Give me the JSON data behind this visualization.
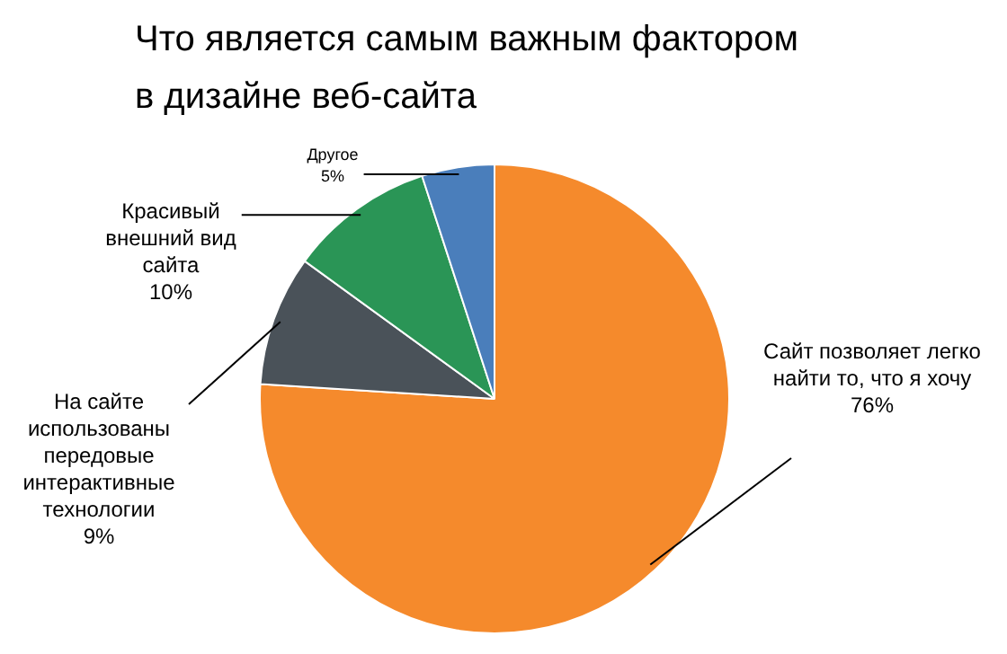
{
  "chart_data": {
    "type": "pie",
    "title": "Что является самым важным фактором в дизайне веб-сайта",
    "categories": [
      "Сайт позволяет легко найти то, что я хочу",
      "На сайте использованы передовые интерактивные технологии",
      "Красивый внешний вид сайта",
      "Другое"
    ],
    "values": [
      76,
      9,
      10,
      5
    ],
    "colors": [
      "#f58a2c",
      "#4a5259",
      "#2a9556",
      "#4a7ebb"
    ],
    "value_labels": [
      "76%",
      "9%",
      "10%",
      "5%"
    ],
    "legend": false
  }
}
